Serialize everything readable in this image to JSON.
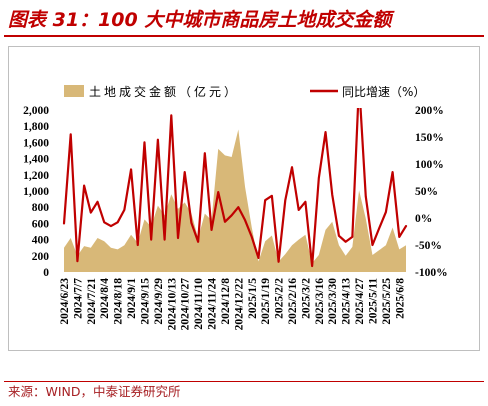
{
  "chart_data": {
    "type": "area",
    "title": "图表 31：100 大中城市商品房土地成交金额",
    "x_tick_labels": [
      "2024/6/23",
      "2024/7/7",
      "2024/7/21",
      "2024/8/4",
      "2024/8/18",
      "2024/9/1",
      "2024/9/15",
      "2024/9/29",
      "2024/10/13",
      "2024/10/27",
      "2024/11/10",
      "2024/11/24",
      "2024/12/8",
      "2024/12/22",
      "2025/1/5",
      "2025/1/19",
      "2025/2/2",
      "2025/2/16",
      "2025/3/2",
      "2025/3/16",
      "2025/3/30",
      "2025/4/13",
      "2025/4/27",
      "2025/5/11",
      "2025/5/25",
      "2025/6/8"
    ],
    "series": [
      {
        "name": "土地成交金额（亿元）",
        "type": "area",
        "axis": "left",
        "values": [
          300,
          420,
          200,
          320,
          300,
          420,
          380,
          300,
          280,
          330,
          460,
          360,
          650,
          560,
          820,
          700,
          960,
          780,
          860,
          720,
          420,
          720,
          640,
          1520,
          1440,
          1420,
          1760,
          1050,
          550,
          130,
          380,
          450,
          130,
          220,
          330,
          400,
          460,
          110,
          210,
          520,
          620,
          330,
          200,
          310,
          1010,
          660,
          210,
          270,
          330,
          550,
          280,
          330
        ]
      },
      {
        "name": "同比增速（%）",
        "type": "line",
        "axis": "right",
        "values": [
          -10,
          155,
          -80,
          60,
          10,
          30,
          -8,
          -15,
          -8,
          15,
          90,
          -50,
          140,
          -40,
          145,
          -40,
          190,
          -37,
          85,
          -9,
          -44,
          120,
          -22,
          48,
          -7,
          5,
          20,
          -4,
          -35,
          -74,
          33,
          41,
          -81,
          33,
          94,
          15,
          30,
          -89,
          74,
          159,
          43,
          -33,
          -44,
          -35,
          250,
          40,
          -50,
          -19,
          11,
          85,
          -35,
          -15
        ]
      }
    ],
    "y_left": {
      "lim": [
        0,
        2000
      ],
      "tick_labels": [
        "0",
        "200",
        "400",
        "600",
        "800",
        "1,000",
        "1,200",
        "1,400",
        "1,600",
        "1,800",
        "2,000"
      ]
    },
    "y_right": {
      "lim": [
        -100,
        200
      ],
      "tick_labels": [
        "-100%",
        "-50%",
        "0%",
        "50%",
        "100%",
        "150%",
        "200%"
      ]
    },
    "grid": false,
    "legend_position": "top"
  },
  "source": "来源：WIND，中泰证券研究所",
  "colors": {
    "title": "#C00000",
    "rule": "#C00000",
    "area": "#D8B878",
    "line": "#C00000",
    "frame": "#BFBFBF",
    "source": "#A61E22"
  }
}
